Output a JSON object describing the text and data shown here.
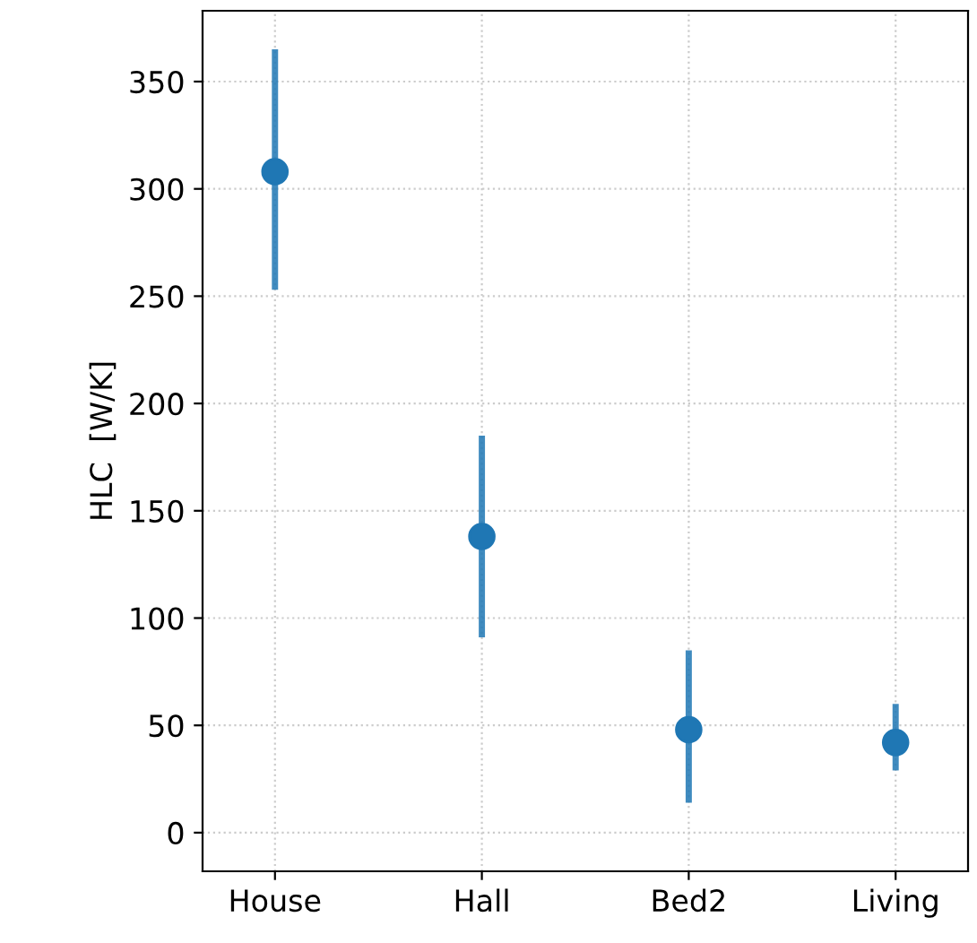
{
  "chart_data": {
    "type": "scatter",
    "ylabel": "HLC  [W/K]",
    "categories": [
      "House",
      "Hall",
      "Bed2",
      "Living"
    ],
    "series": [
      {
        "color": "#1f77b4",
        "values": [
          308,
          138,
          48,
          42
        ],
        "errors": [
          [
            253,
            365
          ],
          [
            91,
            185
          ],
          [
            14,
            85
          ],
          [
            29,
            60
          ]
        ]
      }
    ],
    "ylim": [
      -18,
      383
    ],
    "yticks": [
      0,
      50,
      100,
      150,
      200,
      250,
      300,
      350
    ],
    "grid": true,
    "marker": "circle"
  }
}
